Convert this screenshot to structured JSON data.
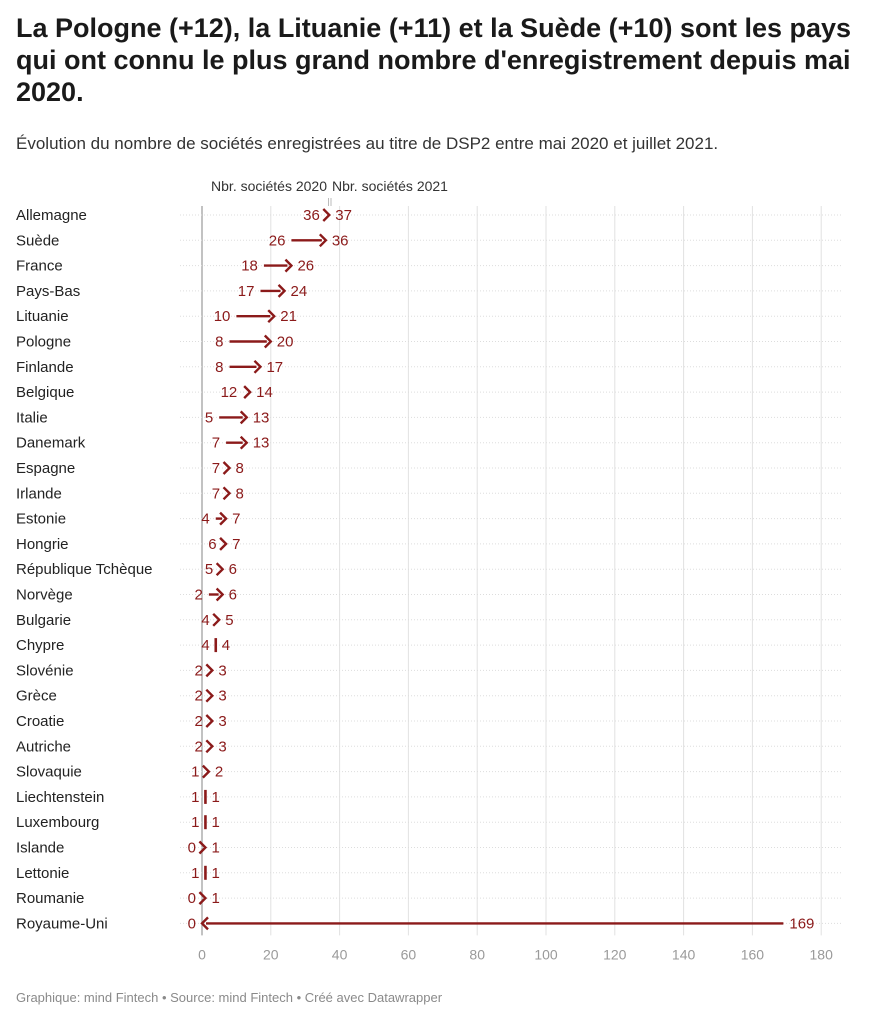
{
  "title": "La Pologne (+12), la Lituanie (+11) et la Suède (+10) sont les pays qui ont connu le plus grand nombre d'enregistrement depuis mai 2020.",
  "subtitle": "Évolution du nombre de sociétés enregistrées au titre de DSP2 entre mai 2020 et juillet 2021.",
  "footer": "Graphique: mind Fintech • Source: mind Fintech • Créé avec Datawrapper",
  "colors": {
    "arrow": "#8b1a1a",
    "grid": "#dcdcdc",
    "axis": "#9a9a9a"
  },
  "chart_data": {
    "type": "arrow-plot",
    "series": [
      {
        "name": "Nbr. sociétés 2020"
      },
      {
        "name": "Nbr. sociétés 2021"
      }
    ],
    "x_ticks": [
      0,
      20,
      40,
      60,
      80,
      100,
      120,
      140,
      160,
      180
    ],
    "xlim": [
      0,
      180
    ],
    "grid": true,
    "rows": [
      {
        "country": "Allemagne",
        "v2020": 36,
        "v2021": 37
      },
      {
        "country": "Suède",
        "v2020": 26,
        "v2021": 36
      },
      {
        "country": "France",
        "v2020": 18,
        "v2021": 26
      },
      {
        "country": "Pays-Bas",
        "v2020": 17,
        "v2021": 24
      },
      {
        "country": "Lituanie",
        "v2020": 10,
        "v2021": 21
      },
      {
        "country": "Pologne",
        "v2020": 8,
        "v2021": 20
      },
      {
        "country": "Finlande",
        "v2020": 8,
        "v2021": 17
      },
      {
        "country": "Belgique",
        "v2020": 12,
        "v2021": 14
      },
      {
        "country": "Italie",
        "v2020": 5,
        "v2021": 13
      },
      {
        "country": "Danemark",
        "v2020": 7,
        "v2021": 13
      },
      {
        "country": "Espagne",
        "v2020": 7,
        "v2021": 8
      },
      {
        "country": "Irlande",
        "v2020": 7,
        "v2021": 8
      },
      {
        "country": "Estonie",
        "v2020": 4,
        "v2021": 7
      },
      {
        "country": "Hongrie",
        "v2020": 6,
        "v2021": 7
      },
      {
        "country": "République Tchèque",
        "v2020": 5,
        "v2021": 6
      },
      {
        "country": "Norvège",
        "v2020": 2,
        "v2021": 6
      },
      {
        "country": "Bulgarie",
        "v2020": 4,
        "v2021": 5
      },
      {
        "country": "Chypre",
        "v2020": 4,
        "v2021": 4
      },
      {
        "country": "Slovénie",
        "v2020": 2,
        "v2021": 3
      },
      {
        "country": "Grèce",
        "v2020": 2,
        "v2021": 3
      },
      {
        "country": "Croatie",
        "v2020": 2,
        "v2021": 3
      },
      {
        "country": "Autriche",
        "v2020": 2,
        "v2021": 3
      },
      {
        "country": "Slovaquie",
        "v2020": 1,
        "v2021": 2
      },
      {
        "country": "Liechtenstein",
        "v2020": 1,
        "v2021": 1
      },
      {
        "country": "Luxembourg",
        "v2020": 1,
        "v2021": 1
      },
      {
        "country": "Islande",
        "v2020": 0,
        "v2021": 1
      },
      {
        "country": "Lettonie",
        "v2020": 1,
        "v2021": 1
      },
      {
        "country": "Roumanie",
        "v2020": 0,
        "v2021": 1
      },
      {
        "country": "Royaume-Uni",
        "v2020": 169,
        "v2021": 0
      }
    ]
  }
}
